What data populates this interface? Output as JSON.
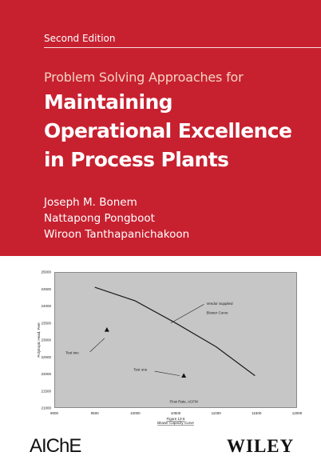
{
  "cover": {
    "band_color": "#c72130",
    "edition": "Second Edition",
    "subtitle": "Problem Solving Approaches for",
    "title_lines": [
      "Maintaining",
      "Operational Excellence",
      "in Process Plants"
    ],
    "authors": [
      "Joseph M. Bonem",
      "Nattapong Pongboot",
      "Wiroon Tanthapanichakoon"
    ]
  },
  "chart_data": {
    "type": "scatter",
    "plot_background": "#c6c6c6",
    "xlim": [
      9000,
      12000
    ],
    "ylim": [
      21000,
      25000
    ],
    "x_ticks": [
      "9000",
      "9500",
      "10000",
      "10500",
      "11000",
      "11500",
      "12000"
    ],
    "y_ticks": [
      "21000",
      "21500",
      "22000",
      "22500",
      "23000",
      "23500",
      "24000",
      "24500",
      "25000"
    ],
    "xlabel": "Flow Rate, ACFM",
    "ylabel": "Polytropic Head, Feet",
    "caption_lines": [
      "Figure 13-6",
      "Blower Capacity Curve"
    ],
    "series": [
      {
        "name": "Vendor Supplied Blower Curve",
        "kind": "line",
        "x": [
          9500,
          10000,
          10500,
          11000,
          11480
        ],
        "y": [
          24550,
          24150,
          23500,
          22800,
          21950
        ]
      },
      {
        "kind": "marker",
        "x": [
          9650,
          10600
        ],
        "y": [
          23300,
          21950
        ]
      }
    ],
    "annotations": [
      {
        "text": "Vendor Supplied",
        "x": 10880,
        "y": 24040
      },
      {
        "text": "Blower Curve",
        "x": 10880,
        "y": 23770
      },
      {
        "text": "Test two",
        "x": 9140,
        "y": 22590
      },
      {
        "text": "Test one",
        "x": 9980,
        "y": 22100
      }
    ],
    "annotation_arrows": [
      {
        "from": [
          10850,
          24050
        ],
        "to": [
          10440,
          23500
        ]
      },
      {
        "from": [
          9440,
          22650
        ],
        "to": [
          9620,
          23050
        ]
      },
      {
        "from": [
          10240,
          22080
        ],
        "to": [
          10550,
          21950
        ]
      }
    ]
  },
  "footer": {
    "left_logo": "AIChE",
    "right_logo": "WILEY"
  }
}
